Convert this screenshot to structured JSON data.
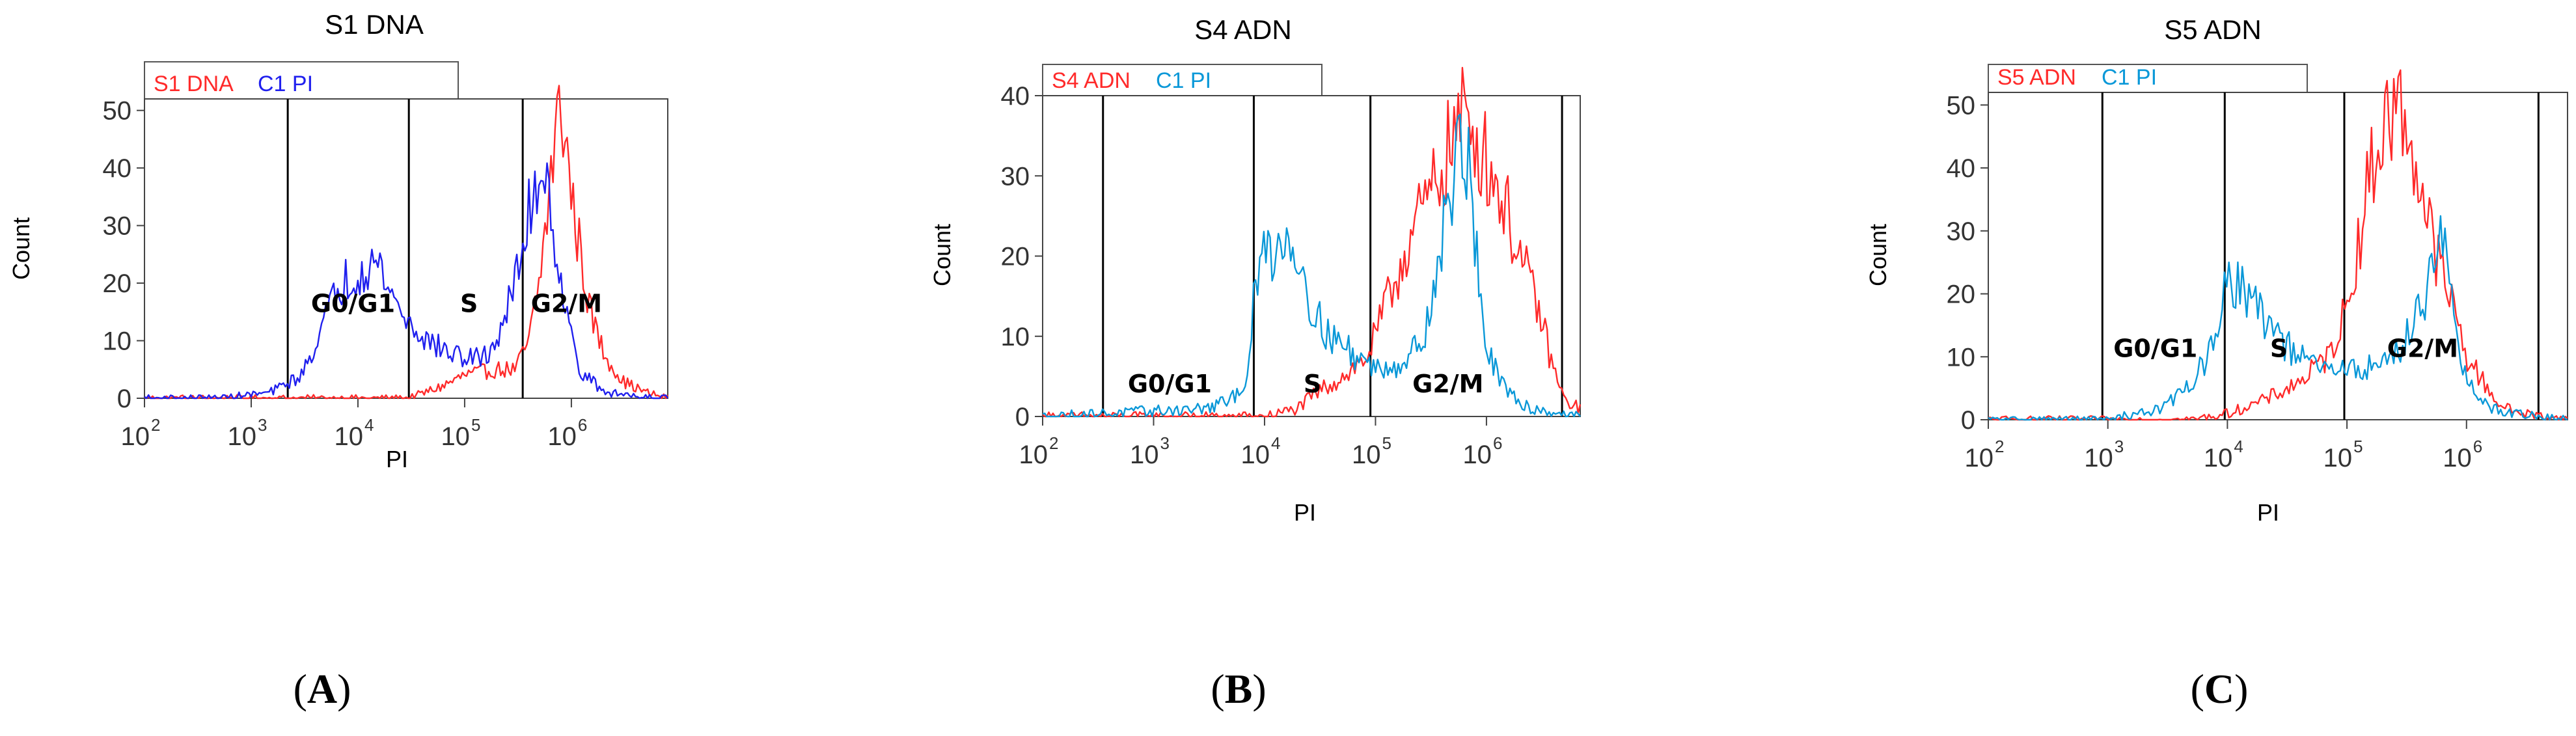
{
  "chart_data": [
    {
      "type": "area",
      "panel_letter": "A",
      "title": "S1 DNA",
      "xlabel": "PI",
      "ylabel": "Count",
      "x_scale": "log",
      "xlim": [
        100,
        8000000
      ],
      "ylim": [
        0,
        52
      ],
      "yticks": [
        0,
        10,
        20,
        30,
        40,
        50
      ],
      "xticks": [
        {
          "base": "10",
          "exp": "2"
        },
        {
          "base": "10",
          "exp": "3"
        },
        {
          "base": "10",
          "exp": "4"
        },
        {
          "base": "10",
          "exp": "5"
        },
        {
          "base": "10",
          "exp": "6"
        }
      ],
      "gate_lines_x": [
        2200,
        30000,
        350000
      ],
      "regions": [
        {
          "label": "G0/G1",
          "x": 9000,
          "y": 15
        },
        {
          "label": "S",
          "x": 110000,
          "y": 15
        },
        {
          "label": "G2/M",
          "x": 900000,
          "y": 15
        }
      ],
      "series": [
        {
          "name": "S1 DNA",
          "color": "#ff2a2a",
          "x": [
            100,
            3000,
            30000,
            60000,
            100000,
            200000,
            300000,
            400000,
            500000,
            600000,
            700000,
            800000,
            900000,
            1000000,
            1200000,
            1500000,
            2000000,
            3000000,
            5000000,
            8000000
          ],
          "y": [
            0,
            0,
            0,
            2,
            4,
            5,
            5,
            10,
            20,
            33,
            45,
            51,
            44,
            35,
            26,
            15,
            8,
            3,
            1,
            0
          ]
        },
        {
          "name": "C1 PI",
          "color": "#2020ee",
          "x": [
            100,
            500,
            1500,
            3000,
            5000,
            7000,
            10000,
            13000,
            17000,
            22000,
            30000,
            45000,
            70000,
            100000,
            150000,
            200000,
            300000,
            400000,
            500000,
            600000,
            700000,
            900000,
            1200000,
            2000000,
            8000000
          ],
          "y": [
            0,
            0,
            1,
            4,
            14,
            20,
            22,
            24,
            22,
            17,
            13,
            10,
            8,
            7,
            7,
            10,
            20,
            32,
            40,
            38,
            28,
            14,
            5,
            1,
            0
          ]
        }
      ]
    },
    {
      "type": "area",
      "panel_letter": "B",
      "title": "S4 ADN",
      "xlabel": "PI",
      "ylabel": "Count",
      "x_scale": "log",
      "xlim": [
        100,
        7000000
      ],
      "ylim": [
        0,
        40
      ],
      "yticks": [
        0,
        10,
        20,
        30,
        40
      ],
      "xticks": [
        {
          "base": "10",
          "exp": "2"
        },
        {
          "base": "10",
          "exp": "3"
        },
        {
          "base": "10",
          "exp": "4"
        },
        {
          "base": "10",
          "exp": "5"
        },
        {
          "base": "10",
          "exp": "6"
        }
      ],
      "gate_lines_x": [
        350,
        8000,
        90000,
        4800000
      ],
      "regions": [
        {
          "label": "G0/G1",
          "x": 1400,
          "y": 3
        },
        {
          "label": "S",
          "x": 27000,
          "y": 3
        },
        {
          "label": "G2/M",
          "x": 450000,
          "y": 3
        }
      ],
      "series": [
        {
          "name": "S4 ADN",
          "color": "#ff2a2a",
          "x": [
            100,
            10000,
            20000,
            30000,
            50000,
            80000,
            100000,
            150000,
            200000,
            300000,
            400000,
            500000,
            600000,
            700000,
            800000,
            1000000,
            1500000,
            2000000,
            3000000,
            4000000,
            5000000,
            7000000
          ],
          "y": [
            0,
            0,
            1,
            3,
            5,
            7,
            10,
            17,
            22,
            27,
            31,
            35,
            37,
            37,
            35,
            32,
            26,
            20,
            13,
            6,
            2,
            1
          ]
        },
        {
          "name": "C1 PI",
          "color": "#0a98d8",
          "x": [
            100,
            3000,
            5000,
            7000,
            8000,
            10000,
            13000,
            17000,
            22000,
            30000,
            40000,
            60000,
            100000,
            200000,
            300000,
            400000,
            500000,
            600000,
            700000,
            850000,
            1000000,
            1500000,
            2500000,
            7000000
          ],
          "y": [
            0,
            1,
            2,
            5,
            14,
            21,
            21,
            23,
            18,
            12,
            10,
            8,
            6,
            7,
            12,
            22,
            30,
            35,
            30,
            18,
            8,
            3,
            1,
            0
          ]
        }
      ]
    },
    {
      "type": "area",
      "panel_letter": "C",
      "title": "S5 ADN",
      "xlabel": "PI",
      "ylabel": "Count",
      "x_scale": "log",
      "xlim": [
        100,
        7000000
      ],
      "ylim": [
        0,
        52
      ],
      "yticks": [
        0,
        10,
        20,
        30,
        40,
        50
      ],
      "xticks": [
        {
          "base": "10",
          "exp": "2"
        },
        {
          "base": "10",
          "exp": "3"
        },
        {
          "base": "10",
          "exp": "4"
        },
        {
          "base": "10",
          "exp": "5"
        },
        {
          "base": "10",
          "exp": "6"
        }
      ],
      "gate_lines_x": [
        900,
        9500,
        95000,
        4000000
      ],
      "regions": [
        {
          "label": "G0/G1",
          "x": 2500,
          "y": 10
        },
        {
          "label": "S",
          "x": 27000,
          "y": 10
        },
        {
          "label": "G2/M",
          "x": 430000,
          "y": 10
        }
      ],
      "series": [
        {
          "name": "S5 ADN",
          "color": "#ff2a2a",
          "x": [
            100,
            5000,
            10000,
            20000,
            40000,
            70000,
            100000,
            130000,
            160000,
            200000,
            250000,
            300000,
            350000,
            400000,
            500000,
            600000,
            800000,
            1000000,
            1500000,
            2000000,
            3000000,
            7000000
          ],
          "y": [
            0,
            0,
            1,
            3,
            6,
            10,
            18,
            30,
            40,
            46,
            50,
            48,
            44,
            38,
            30,
            24,
            17,
            10,
            5,
            2,
            1,
            0
          ]
        },
        {
          "name": "C1 PI",
          "color": "#0a98d8",
          "x": [
            100,
            1000,
            3000,
            5000,
            8000,
            9500,
            11000,
            14000,
            18000,
            24000,
            30000,
            40000,
            60000,
            90000,
            130000,
            200000,
            300000,
            450000,
            550000,
            650000,
            800000,
            1000000,
            1500000,
            2500000,
            7000000
          ],
          "y": [
            0,
            0,
            2,
            6,
            12,
            20,
            22,
            21,
            17,
            15,
            12,
            10,
            8,
            8,
            8,
            9,
            12,
            20,
            30,
            27,
            14,
            6,
            2,
            1,
            0
          ]
        }
      ]
    }
  ]
}
